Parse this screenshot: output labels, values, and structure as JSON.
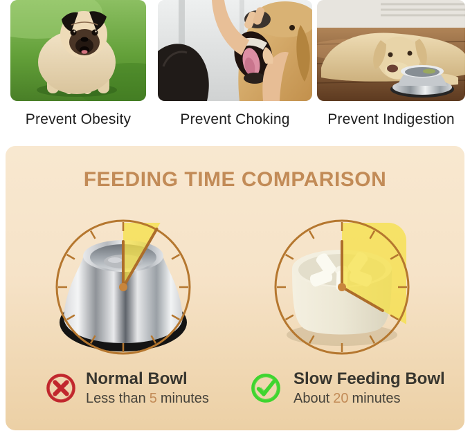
{
  "benefits": [
    {
      "caption": "Prevent Obesity",
      "photo": "fat-pug-on-grass"
    },
    {
      "caption": "Prevent Choking",
      "photo": "hand-checking-dog-mouth"
    },
    {
      "caption": "Prevent Indigestion",
      "photo": "dog-lying-beside-empty-bowl"
    }
  ],
  "comparison": {
    "title": "FEEDING TIME COMPARISON",
    "colors": {
      "accent": "#c28b57",
      "clock_line": "#b5772f",
      "clock_hand": "#ad6d2a",
      "clock_dot": "#c8853c",
      "wedge": "rgba(246,224,70,0.75)",
      "negative": "#c1272d",
      "positive": "#3ed52f",
      "panel_top": "#f8e8d0",
      "panel_bottom": "#ecd0a5"
    },
    "items": [
      {
        "name": "Normal Bowl",
        "verdict": "negative",
        "icon": "x-circle-icon",
        "icon_color": "#c1272d",
        "minutes": 5,
        "time_prefix": "Less than",
        "time_value": "5",
        "time_suffix": "minutes",
        "bowl": "stainless-steel-bowl"
      },
      {
        "name": "Slow Feeding Bowl",
        "verdict": "positive",
        "icon": "check-circle-icon",
        "icon_color": "#3ed52f",
        "minutes": 20,
        "time_prefix": "About",
        "time_value": "20",
        "time_suffix": "minutes",
        "bowl": "slow-feeder-bowl"
      }
    ]
  }
}
